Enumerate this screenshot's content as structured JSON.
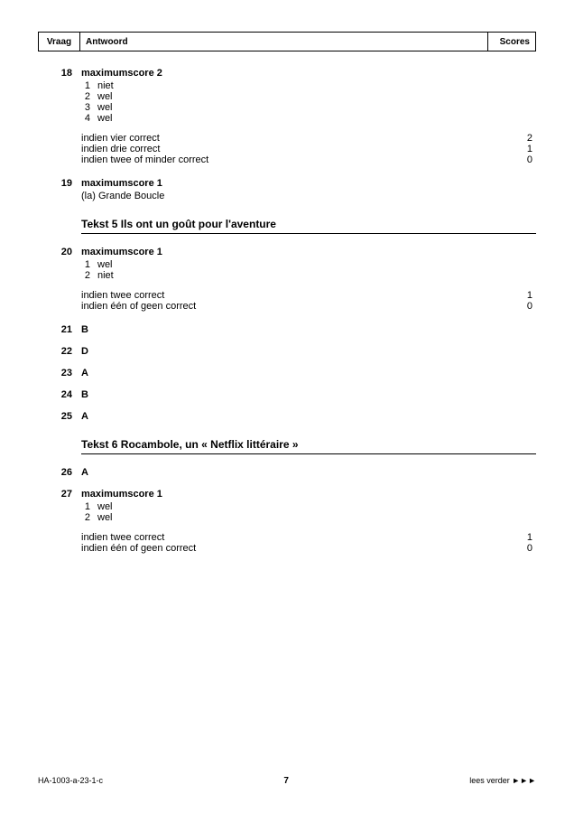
{
  "header": {
    "vraag": "Vraag",
    "antwoord": "Antwoord",
    "scores": "Scores"
  },
  "q18": {
    "num": "18",
    "title": "maximumscore 2",
    "items": [
      {
        "n": "1",
        "t": "niet"
      },
      {
        "n": "2",
        "t": "wel"
      },
      {
        "n": "3",
        "t": "wel"
      },
      {
        "n": "4",
        "t": "wel"
      }
    ],
    "scoring": [
      {
        "label": "indien vier correct",
        "val": "2"
      },
      {
        "label": "indien drie correct",
        "val": "1"
      },
      {
        "label": "indien twee of minder correct",
        "val": "0"
      }
    ]
  },
  "q19": {
    "num": "19",
    "title": "maximumscore 1",
    "line": "(la) Grande Boucle"
  },
  "section5": "Tekst 5  Ils ont un goût pour l'aventure",
  "q20": {
    "num": "20",
    "title": "maximumscore 1",
    "items": [
      {
        "n": "1",
        "t": "wel"
      },
      {
        "n": "2",
        "t": "niet"
      }
    ],
    "scoring": [
      {
        "label": "indien twee correct",
        "val": "1"
      },
      {
        "label": "indien één of geen correct",
        "val": "0"
      }
    ]
  },
  "q21": {
    "num": "21",
    "ans": "B"
  },
  "q22": {
    "num": "22",
    "ans": "D"
  },
  "q23": {
    "num": "23",
    "ans": "A"
  },
  "q24": {
    "num": "24",
    "ans": "B"
  },
  "q25": {
    "num": "25",
    "ans": "A"
  },
  "section6": "Tekst 6  Rocambole, un « Netflix littéraire »",
  "q26": {
    "num": "26",
    "ans": "A"
  },
  "q27": {
    "num": "27",
    "title": "maximumscore 1",
    "items": [
      {
        "n": "1",
        "t": "wel"
      },
      {
        "n": "2",
        "t": "wel"
      }
    ],
    "scoring": [
      {
        "label": "indien twee correct",
        "val": "1"
      },
      {
        "label": "indien één of geen correct",
        "val": "0"
      }
    ]
  },
  "footer": {
    "left": "HA-1003-a-23-1-c",
    "page": "7",
    "right": "lees verder ►►►"
  }
}
